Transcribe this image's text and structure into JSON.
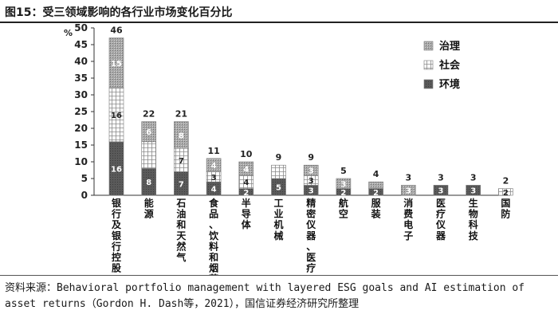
{
  "header": {
    "title": "图15：受三领域影响的各行业市场变化百分比"
  },
  "footer": {
    "source": "资料来源：Behavioral portfolio management with layered ESG goals and AI estimation of asset returns（Gordon H. Dash等，2021），国信证券经济研究所整理"
  },
  "chart_data": {
    "type": "bar",
    "stacked": true,
    "ylabel": "%",
    "ylim": [
      0,
      50
    ],
    "yticks": [
      0,
      5,
      10,
      15,
      20,
      25,
      30,
      35,
      40,
      45,
      50
    ],
    "categories": [
      "银行及银行控股",
      "能源",
      "石油和天然气",
      "食品、饮料和烟草",
      "半导体",
      "工业机械",
      "精密仪器、医疗",
      "航空",
      "服装",
      "消费电子",
      "医疗仪器",
      "生物科技",
      "国防"
    ],
    "totals": [
      "46",
      "22",
      "21",
      "11",
      "10",
      "9",
      "9",
      "5",
      "4",
      "3",
      "3",
      "3",
      "2"
    ],
    "series": [
      {
        "name": "环境",
        "values": [
          16,
          8,
          7,
          4,
          2,
          5,
          3,
          2,
          2,
          0,
          3,
          3,
          0
        ],
        "labels": [
          "16",
          "8",
          "7",
          "4",
          "2",
          "5",
          "3",
          "2",
          "2",
          "",
          "3",
          "3",
          ""
        ],
        "color": "#555555"
      },
      {
        "name": "社会",
        "values": [
          16,
          8,
          7,
          3,
          4,
          4,
          3,
          0,
          0,
          0,
          0,
          0,
          2
        ],
        "labels": [
          "16",
          "",
          "7",
          "3",
          "4",
          "",
          "3",
          "",
          "",
          "",
          "",
          "",
          "2"
        ],
        "color": "#ffffff"
      },
      {
        "name": "治理",
        "values": [
          15,
          6,
          8,
          4,
          4,
          0,
          3,
          3,
          2,
          3,
          0,
          0,
          0
        ],
        "labels": [
          "15",
          "6",
          "8",
          "4",
          "4",
          "",
          "3",
          "3",
          "",
          "3",
          "",
          "",
          ""
        ],
        "color": "#9a9a9a"
      }
    ],
    "legend": {
      "position": "top-right",
      "order": [
        "治理",
        "社会",
        "环境"
      ]
    },
    "grid": false
  }
}
